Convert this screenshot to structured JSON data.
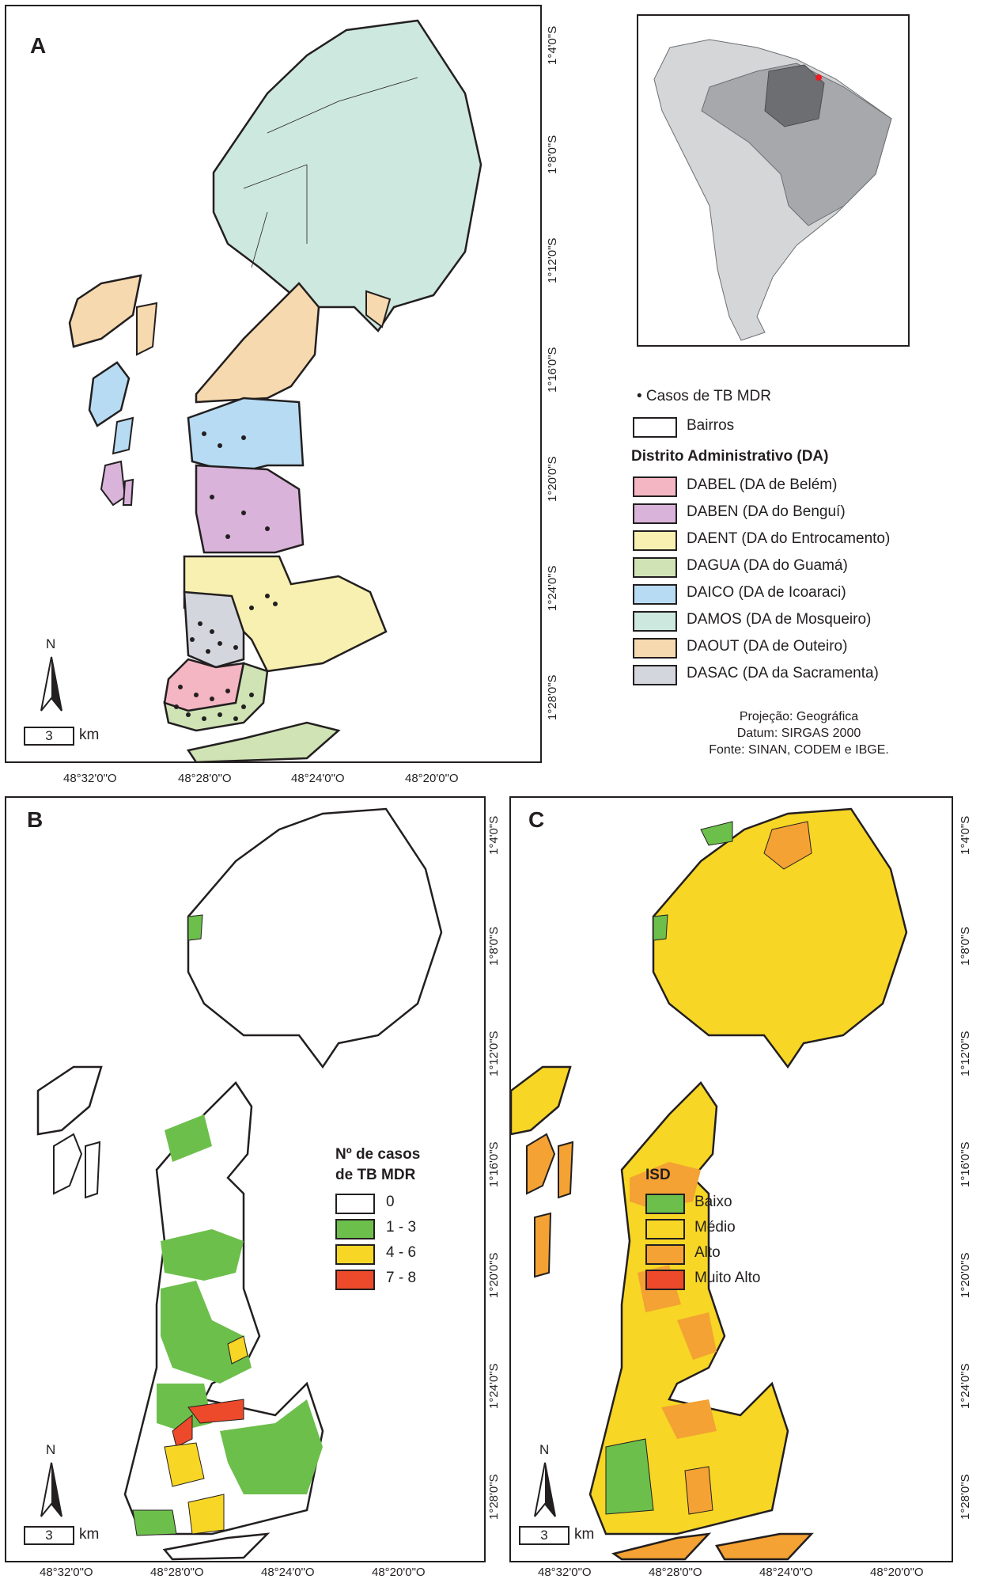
{
  "panels": {
    "a": {
      "letter": "A"
    },
    "b": {
      "letter": "B"
    },
    "c": {
      "letter": "C"
    }
  },
  "coords": {
    "lat": [
      "1°4'0\"S",
      "1°8'0\"S",
      "1°12'0\"S",
      "1°16'0\"S",
      "1°20'0\"S",
      "1°24'0\"S",
      "1°28'0\"S"
    ],
    "lon": [
      "48°32'0\"O",
      "48°28'0\"O",
      "48°24'0\"O",
      "48°20'0\"O"
    ]
  },
  "north_label": "N",
  "scale": {
    "value": "3",
    "unit": "km"
  },
  "legend_a": {
    "cases": "• Casos de TB MDR",
    "bairros": "Bairros",
    "title": "Distrito Administrativo (DA)",
    "items": [
      {
        "label": "DABEL (DA de Belém)",
        "color": "#f4b6c2"
      },
      {
        "label": "DABEN (DA do Benguí)",
        "color": "#d9b3d9"
      },
      {
        "label": "DAENT (DA do Entrocamento)",
        "color": "#f7f0b0"
      },
      {
        "label": "DAGUA (DA do Guamá)",
        "color": "#cfe3b4"
      },
      {
        "label": "DAICO (DA de Icoaraci)",
        "color": "#b6dbf2"
      },
      {
        "label": "DAMOS (DA de Mosqueiro)",
        "color": "#cde8de"
      },
      {
        "label": "DAOUT (DA de Outeiro)",
        "color": "#f6d9ae"
      },
      {
        "label": "DASAC (DA da Sacramenta)",
        "color": "#d3d6dc"
      }
    ]
  },
  "source": {
    "line1": "Projeção: Geográfica",
    "line2": "Datum: SIRGAS 2000",
    "line3": "Fonte: SINAN, CODEM e IBGE."
  },
  "legend_b": {
    "title1": "Nº de casos",
    "title2": "de TB MDR",
    "items": [
      {
        "label": "0",
        "color": "#ffffff"
      },
      {
        "label": "1 - 3",
        "color": "#6cbf4b"
      },
      {
        "label": "4 - 6",
        "color": "#f7d625"
      },
      {
        "label": "7 - 8",
        "color": "#ec4a2a"
      }
    ]
  },
  "legend_c": {
    "title": "ISD",
    "items": [
      {
        "label": "Baixo",
        "color": "#6cbf4b"
      },
      {
        "label": "Médio",
        "color": "#f7d625"
      },
      {
        "label": "Alto",
        "color": "#f4a233"
      },
      {
        "label": "Muito Alto",
        "color": "#ec4a2a"
      }
    ]
  },
  "inset": {
    "land": "#d4d6d8",
    "brazil": "#a6a8ab",
    "para": "#6d6e71",
    "belem": "#ed1c24"
  }
}
